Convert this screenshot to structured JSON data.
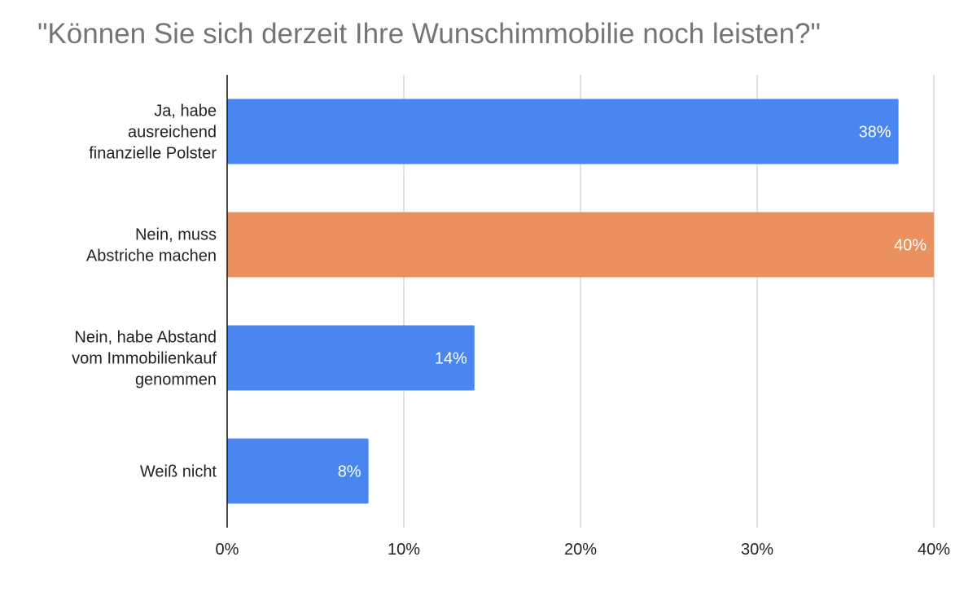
{
  "chart_data": {
    "type": "bar",
    "orientation": "horizontal",
    "title": "\"Können Sie sich derzeit Ihre Wunschimmobilie noch leisten?\"",
    "categories": [
      "Ja, habe ausreichend finanzielle Polster",
      "Nein, muss Abstriche machen",
      "Nein, habe Abstand vom Immobilienkauf genommen",
      "Weiß nicht"
    ],
    "category_label_lines": [
      [
        "Ja, habe",
        "ausreichend",
        "finanzielle Polster"
      ],
      [
        "Nein, muss",
        "Abstriche machen"
      ],
      [
        "Nein, habe Abstand",
        "vom Immobilienkauf",
        "genommen"
      ],
      [
        "Weiß nicht"
      ]
    ],
    "values": [
      38,
      40,
      14,
      8
    ],
    "data_labels": [
      "38%",
      "40%",
      "14%",
      "8%"
    ],
    "bar_colors": [
      "#4a86f0",
      "#ea915f",
      "#4a86f0",
      "#4a86f0"
    ],
    "x_ticks": [
      0,
      10,
      20,
      30,
      40
    ],
    "x_tick_labels": [
      "0%",
      "10%",
      "20%",
      "30%",
      "40%"
    ],
    "xlim": [
      0,
      40
    ],
    "xlabel": "",
    "ylabel": "",
    "grid": true,
    "legend": "none"
  }
}
